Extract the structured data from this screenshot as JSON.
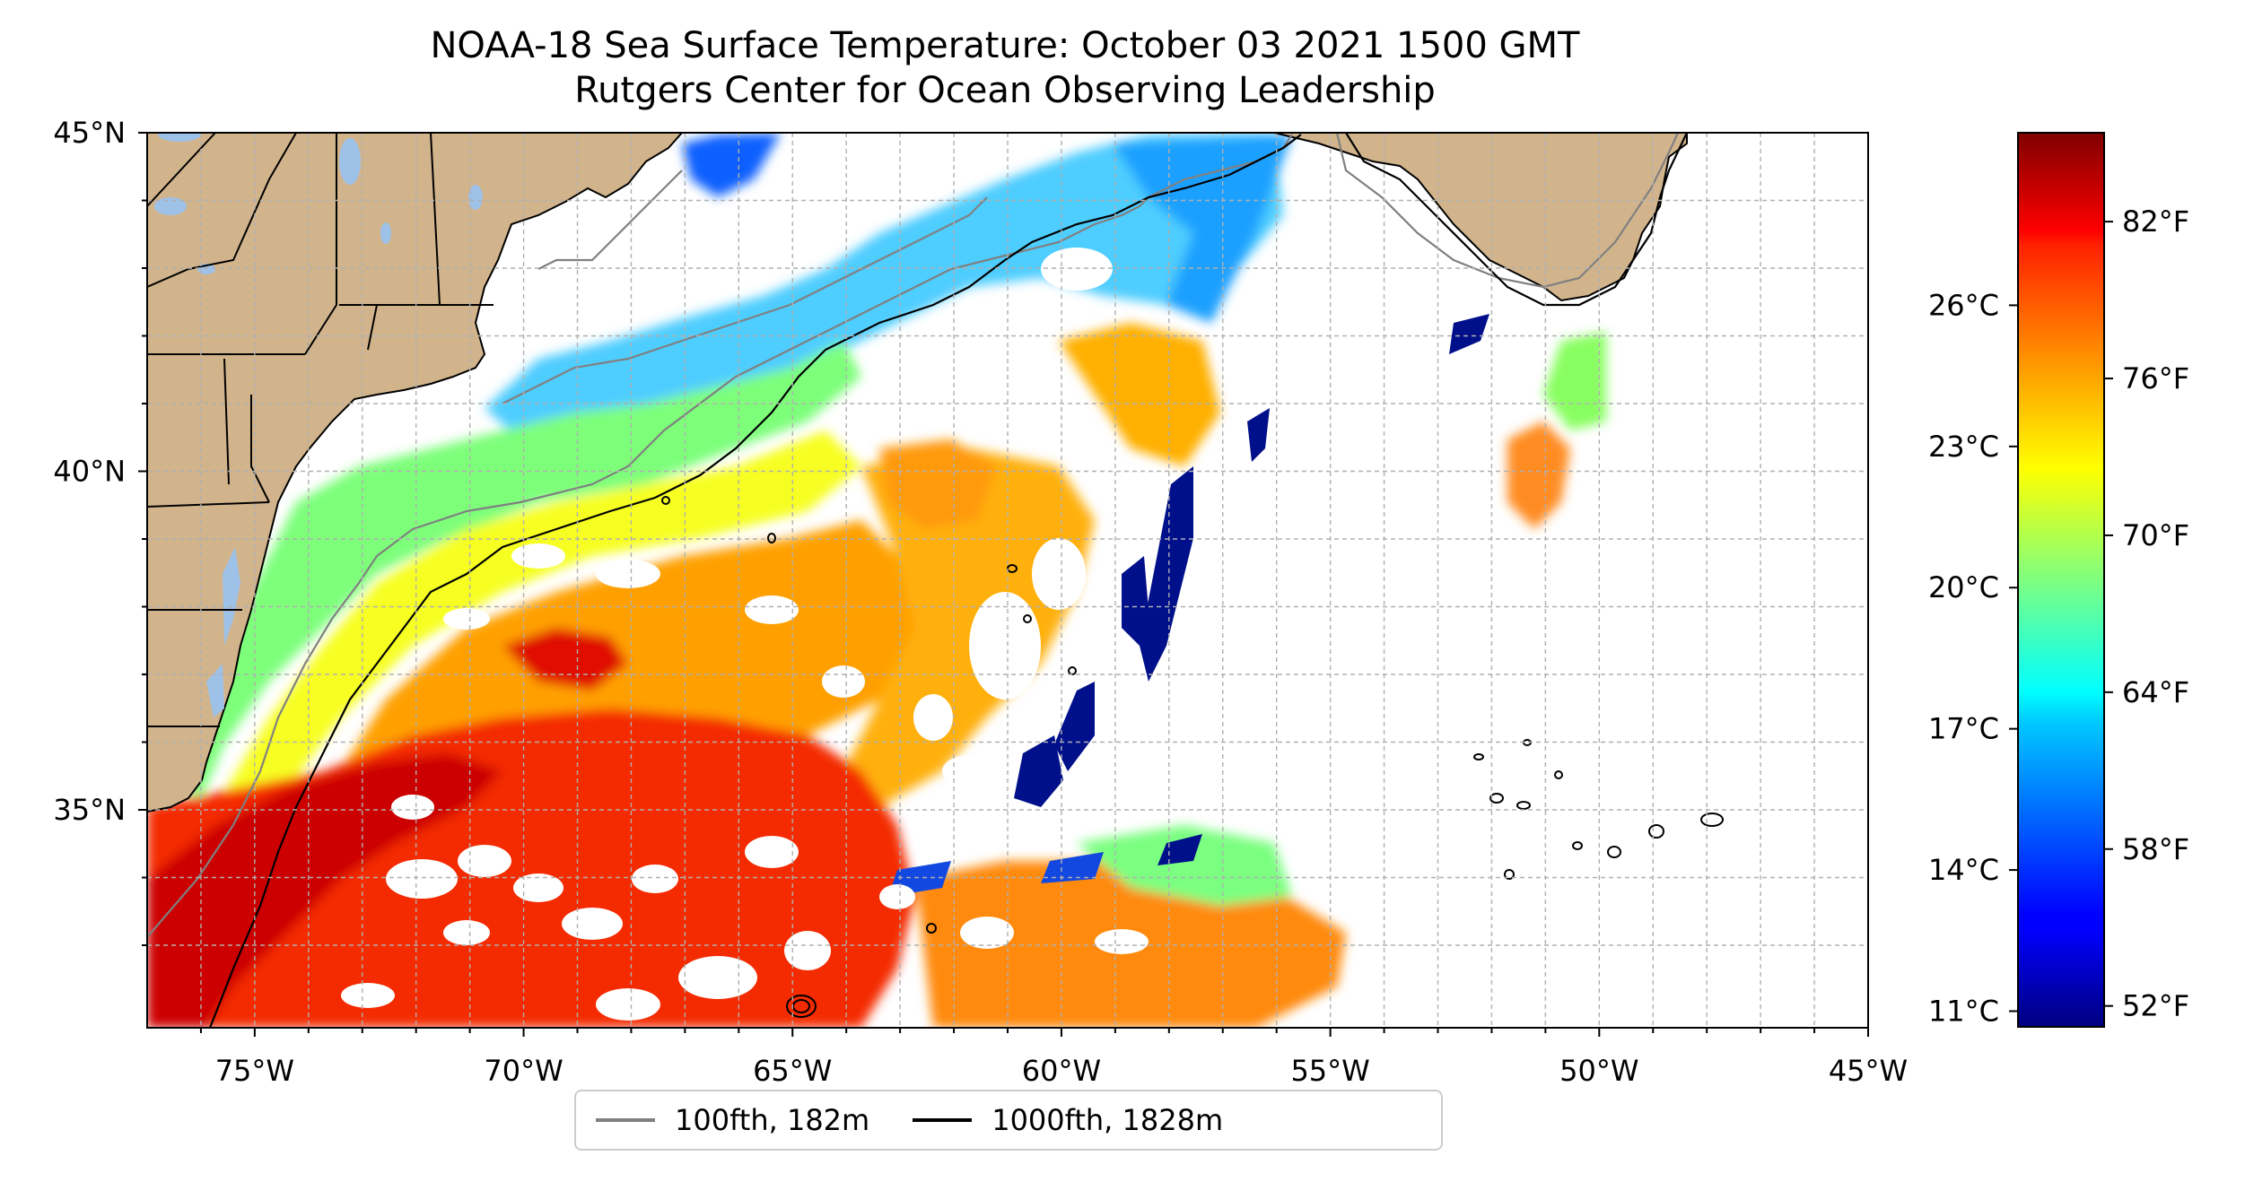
{
  "title": {
    "line1": "NOAA-18 Sea Surface Temperature: October 03 2021 1500 GMT",
    "line2": "Rutgers Center for Ocean Observing Leadership"
  },
  "map": {
    "lon_range": [
      -77,
      -45
    ],
    "lat_range": [
      32.2,
      45
    ],
    "x_ticks": [
      "75°W",
      "70°W",
      "65°W",
      "60°W",
      "55°W",
      "50°W",
      "45°W"
    ],
    "y_ticks": [
      "45°N",
      "40°N",
      "35°N"
    ],
    "land_color": "#d2b48c",
    "lake_color": "#9ec1e8",
    "ocean_color": "#ffffff",
    "grid": "dashed, every 1 degree"
  },
  "colorbar": {
    "colormap": "jet",
    "fahrenheit_ticks": [
      "82°F",
      "76°F",
      "70°F",
      "64°F",
      "58°F",
      "52°F"
    ],
    "celsius_ticks": [
      "26°C",
      "23°C",
      "20°C",
      "17°C",
      "14°C",
      "11°C"
    ]
  },
  "legend": {
    "items": [
      {
        "label": "100fth, 182m",
        "color": "#808080"
      },
      {
        "label": "1000fth, 1828m",
        "color": "#000000"
      }
    ]
  }
}
